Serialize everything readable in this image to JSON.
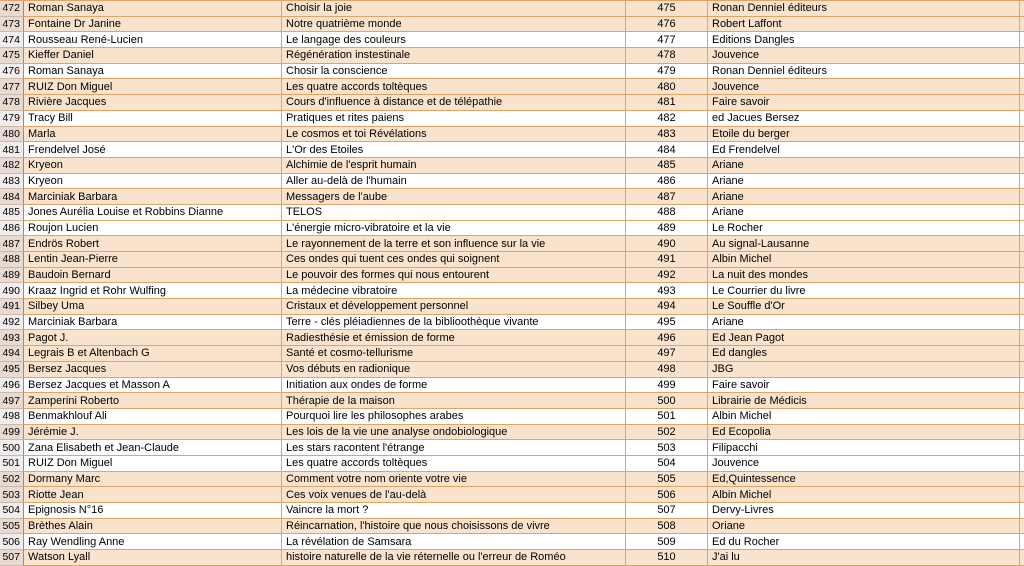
{
  "app": {
    "kind": "spreadsheet-book-list"
  },
  "colors": {
    "row_peach": "#fae3cd",
    "row_white": "#ffffff",
    "grid_orange": "#e1a366",
    "row_header_peach": "#e9dad1",
    "row_header_white": "#f1eded",
    "row_header_border": "#8f8f8f"
  },
  "table": {
    "columns": [
      "row_number",
      "author",
      "title",
      "index_number",
      "publisher"
    ],
    "rows": [
      {
        "num": "472",
        "author": "Roman Sanaya",
        "title": "Choisir la joie",
        "num2": "475",
        "publisher": "Ronan Denniel éditeurs",
        "shade": "peach"
      },
      {
        "num": "473",
        "author": "Fontaine Dr Janine",
        "title": "Notre quatrième monde",
        "num2": "476",
        "publisher": "Robert Laffont",
        "shade": "peach"
      },
      {
        "num": "474",
        "author": "Rousseau René-Lucien",
        "title": "Le langage des couleurs",
        "num2": "477",
        "publisher": "Editions Dangles",
        "shade": "white"
      },
      {
        "num": "475",
        "author": "Kieffer Daniel",
        "title": "Régénération instestinale",
        "num2": "478",
        "publisher": "Jouvence",
        "shade": "peach"
      },
      {
        "num": "476",
        "author": "Roman Sanaya",
        "title": "Chosir la conscience",
        "num2": "479",
        "publisher": "Ronan Denniel éditeurs",
        "shade": "white"
      },
      {
        "num": "477",
        "author": "RUIZ Don Miguel",
        "title": "Les quatre accords toltèques",
        "num2": "480",
        "publisher": "Jouvence",
        "shade": "peach"
      },
      {
        "num": "478",
        "author": "Rivière Jacques",
        "title": "Cours d'influence à distance et de télépathie",
        "num2": "481",
        "publisher": "Faire savoir",
        "shade": "peach"
      },
      {
        "num": "479",
        "author": "Tracy Bill",
        "title": "Pratiques et rites paiens",
        "num2": "482",
        "publisher": "ed Jacues Bersez",
        "shade": "white"
      },
      {
        "num": "480",
        "author": "Marla",
        "title": "Le cosmos et toi Révélations",
        "num2": "483",
        "publisher": "Etoile du berger",
        "shade": "peach"
      },
      {
        "num": "481",
        "author": "Frendelvel José",
        "title": "L'Or des Etoiles",
        "num2": "484",
        "publisher": "Ed Frendelvel",
        "shade": "white"
      },
      {
        "num": "482",
        "author": "Kryeon",
        "title": "Alchimie de l'esprit humain",
        "num2": "485",
        "publisher": "Ariane",
        "shade": "peach"
      },
      {
        "num": "483",
        "author": "Kryeon",
        "title": "Aller au-delà de l'humain",
        "num2": "486",
        "publisher": "Ariane",
        "shade": "white"
      },
      {
        "num": "484",
        "author": "Marciniak Barbara",
        "title": "Messagers de l'aube",
        "num2": "487",
        "publisher": "Ariane",
        "shade": "peach"
      },
      {
        "num": "485",
        "author": "Jones Aurélia Louise et Robbins Dianne",
        "title": "TELOS",
        "num2": "488",
        "publisher": "Ariane",
        "shade": "white"
      },
      {
        "num": "486",
        "author": "Roujon Lucien",
        "title": "L'énergie micro-vibratoire et la vie",
        "num2": "489",
        "publisher": "Le Rocher",
        "shade": "white"
      },
      {
        "num": "487",
        "author": "Endrös Robert",
        "title": "Le rayonnement de la terre et son influence sur la vie",
        "num2": "490",
        "publisher": "Au signal-Lausanne",
        "shade": "peach"
      },
      {
        "num": "488",
        "author": "Lentin Jean-Pierre",
        "title": "Ces ondes qui tuent ces ondes qui soignent",
        "num2": "491",
        "publisher": "Albin Michel",
        "shade": "peach"
      },
      {
        "num": "489",
        "author": "Baudoin Bernard",
        "title": "Le pouvoir des formes qui nous entourent",
        "num2": "492",
        "publisher": "La nuit des mondes",
        "shade": "peach"
      },
      {
        "num": "490",
        "author": "Kraaz Ingrid et Rohr Wulfing",
        "title": "La médecine vibratoire",
        "num2": "493",
        "publisher": "Le Courrier du livre",
        "shade": "white"
      },
      {
        "num": "491",
        "author": "Silbey Uma",
        "title": "Cristaux et développement personnel",
        "num2": "494",
        "publisher": "Le Souffle d'Or",
        "shade": "peach"
      },
      {
        "num": "492",
        "author": "Marciniak Barbara",
        "title": "Terre - clés pléiadiennes de la biblioothèque vivante",
        "num2": "495",
        "publisher": "Ariane",
        "shade": "white"
      },
      {
        "num": "493",
        "author": "Pagot J.",
        "title": "Radiesthésie et émission de forme",
        "num2": "496",
        "publisher": "Ed Jean Pagot",
        "shade": "peach"
      },
      {
        "num": "494",
        "author": "Legrais B et Altenbach G",
        "title": "Santé et cosmo-tellurisme",
        "num2": "497",
        "publisher": "Ed dangles",
        "shade": "peach"
      },
      {
        "num": "495",
        "author": "Bersez Jacques",
        "title": "Vos débuts en radionique",
        "num2": "498",
        "publisher": "JBG",
        "shade": "peach"
      },
      {
        "num": "496",
        "author": "Bersez Jacques et Masson A",
        "title": "Initiation aux ondes de forme",
        "num2": "499",
        "publisher": "Faire savoir",
        "shade": "white"
      },
      {
        "num": "497",
        "author": "Zamperini Roberto",
        "title": "Thérapie de la maison",
        "num2": "500",
        "publisher": "Librairie de Médicis",
        "shade": "peach"
      },
      {
        "num": "498",
        "author": "Benmakhlouf Ali",
        "title": "Pourquoi lire les philosophes arabes",
        "num2": "501",
        "publisher": "Albin Michel",
        "shade": "white"
      },
      {
        "num": "499",
        "author": "Jérémie J.",
        "title": "Les lois de la vie une analyse ondobiologique",
        "num2": "502",
        "publisher": "Ed Ecopolia",
        "shade": "peach"
      },
      {
        "num": "500",
        "author": "Zana Elisabeth et Jean-Claude",
        "title": "Les stars racontent l'étrange",
        "num2": "503",
        "publisher": "Filipacchi",
        "shade": "white"
      },
      {
        "num": "501",
        "author": "RUIZ Don Miguel",
        "title": "Les quatre accords toltèques",
        "num2": "504",
        "publisher": "Jouvence",
        "shade": "white"
      },
      {
        "num": "502",
        "author": "Dormany Marc",
        "title": "Comment votre nom oriente votre vie",
        "num2": "505",
        "publisher": "Ed,Quintessence",
        "shade": "peach"
      },
      {
        "num": "503",
        "author": "Riotte Jean",
        "title": "Ces voix venues de l'au-delà",
        "num2": "506",
        "publisher": "Albin Michel",
        "shade": "peach"
      },
      {
        "num": "504",
        "author": "Epignosis N°16",
        "title": "Vaincre la mort ?",
        "num2": "507",
        "publisher": "Dervy-Livres",
        "shade": "white"
      },
      {
        "num": "505",
        "author": "Brèthes Alain",
        "title": "Réincarnation, l'histoire que nous choisissons de vivre",
        "num2": "508",
        "publisher": "Oriane",
        "shade": "peach"
      },
      {
        "num": "506",
        "author": "Ray Wendling Anne",
        "title": "La révélation de Samsara",
        "num2": "509",
        "publisher": "Ed du Rocher",
        "shade": "white"
      },
      {
        "num": "507",
        "author": "Watson Lyall",
        "title": "histoire naturelle de la vie réternelle ou l'erreur de Roméo",
        "num2": "510",
        "publisher": "J'ai lu",
        "shade": "peach"
      }
    ]
  }
}
